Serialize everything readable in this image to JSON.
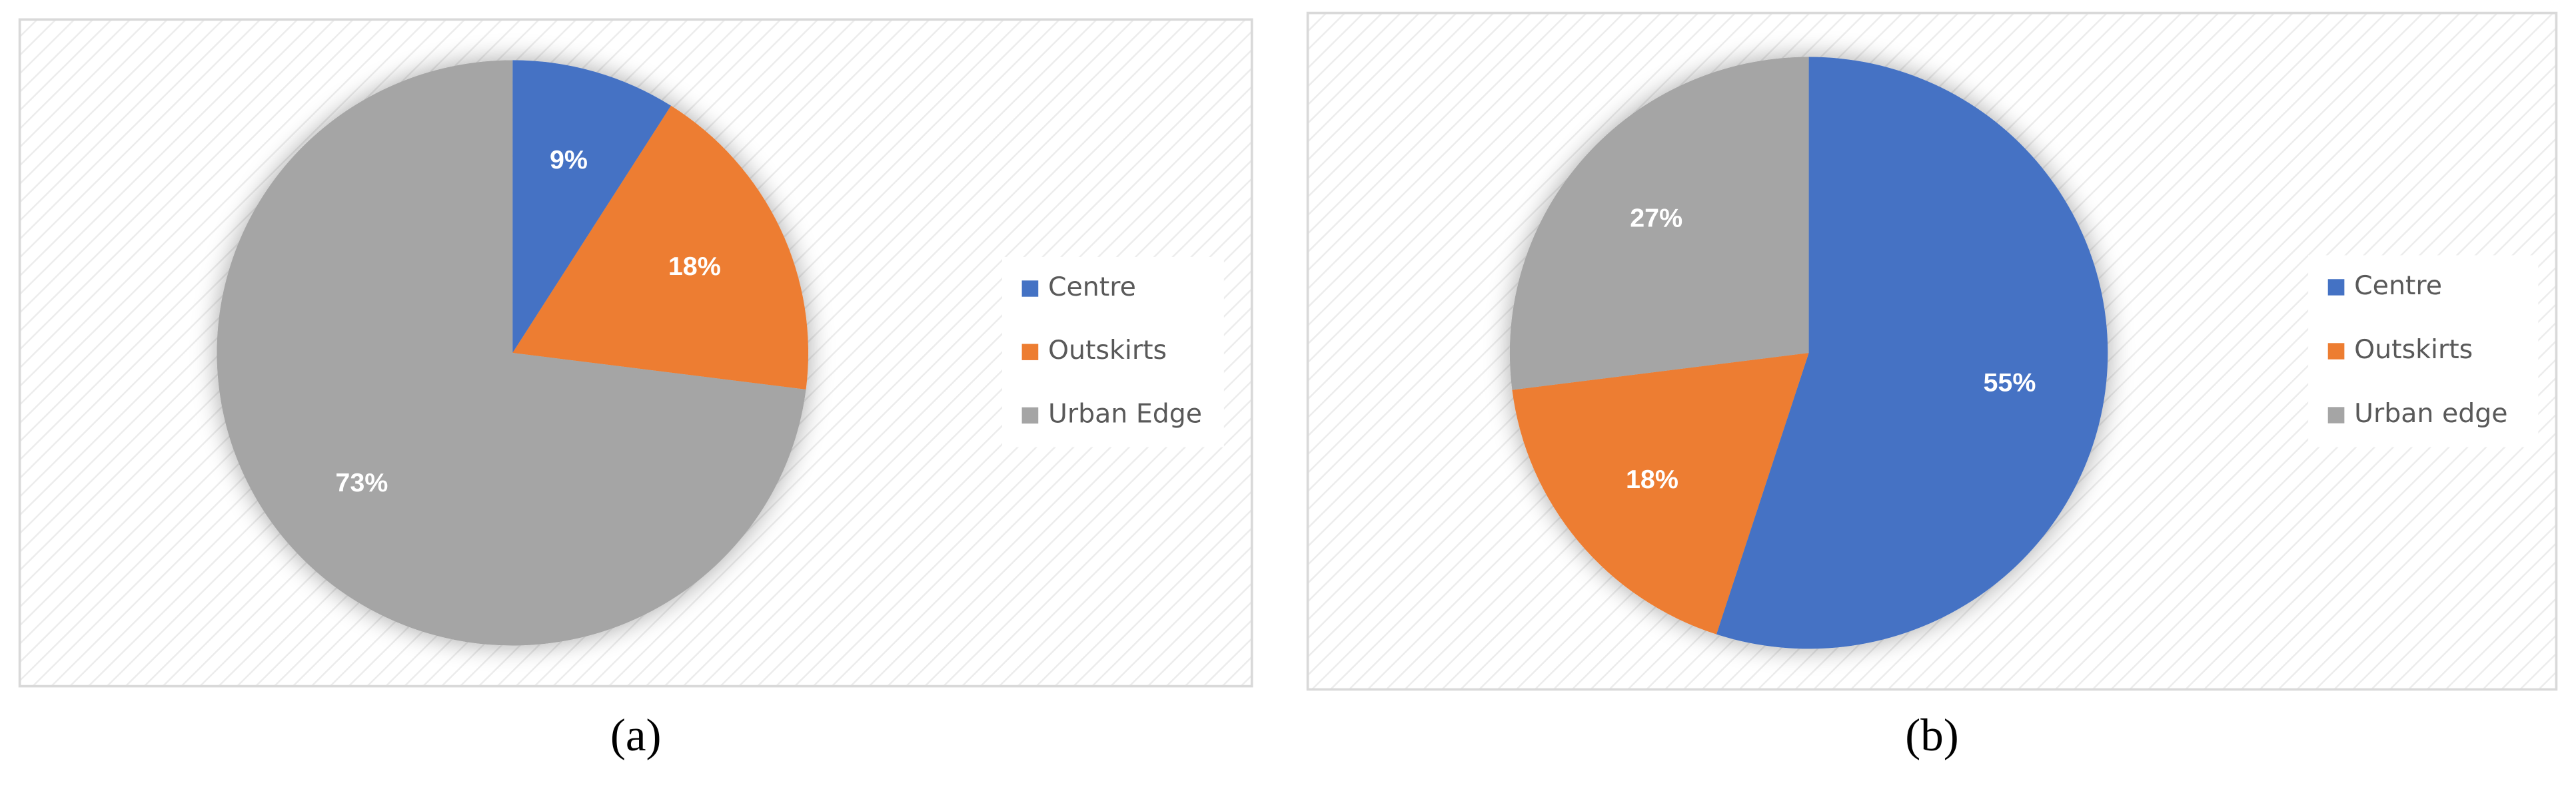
{
  "chart_data": [
    {
      "type": "pie",
      "caption": "(a)",
      "categories": [
        "Centre",
        "Outskirts",
        "Urban Edge"
      ],
      "values": [
        9,
        18,
        73
      ],
      "value_labels": [
        "9%",
        "18%",
        "73%"
      ],
      "colors": [
        "#4472c4",
        "#ed7d31",
        "#a5a5a5"
      ],
      "legend": "right"
    },
    {
      "type": "pie",
      "caption": "(b)",
      "categories": [
        "Centre",
        "Outskirts",
        "Urban edge"
      ],
      "values": [
        55,
        18,
        27
      ],
      "value_labels": [
        "55%",
        "18%",
        "27%"
      ],
      "colors": [
        "#4472c4",
        "#ed7d31",
        "#a5a5a5"
      ],
      "legend": "right"
    }
  ]
}
